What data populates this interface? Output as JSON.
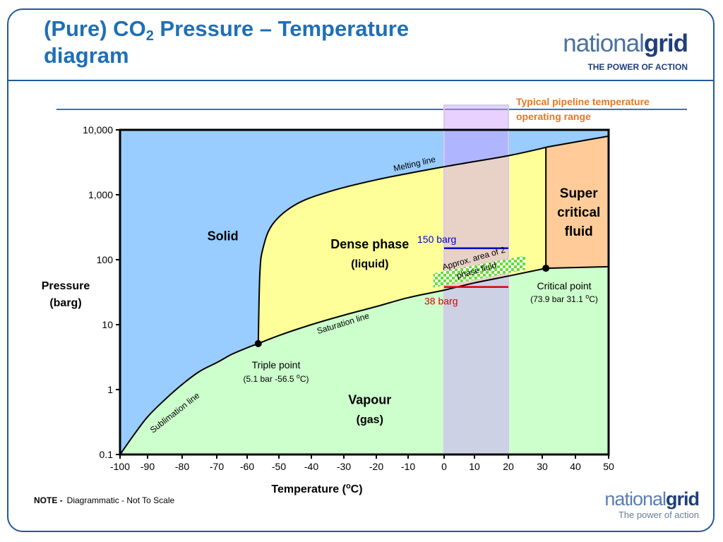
{
  "slide": {
    "title_pre": "(Pure) CO",
    "title_sub": "2",
    "title_post": " Pressure – Temperature",
    "title_line2": "diagram",
    "logo_top": {
      "word_light": "national",
      "word_bold": "grid",
      "tagline": "THE POWER OF ACTION"
    },
    "logo_bottom": {
      "word_light": "national",
      "word_bold": "grid",
      "tagline": "The power of action"
    },
    "note_label": "NOTE  -",
    "note_text": "Diagrammatic  -  Not To Scale"
  },
  "chart_data": {
    "type": "area",
    "title": "(Pure) CO2 Pressure – Temperature diagram",
    "xlabel": "Temperature  (oC)",
    "ylabel_line1": "Pressure",
    "ylabel_line2": "(barg)",
    "xlim": [
      -100,
      50
    ],
    "ylim": [
      0.1,
      10000
    ],
    "yscale": "log",
    "x_ticks": [
      -100,
      -90,
      -80,
      -70,
      -60,
      -50,
      -40,
      -30,
      -20,
      -10,
      0,
      10,
      20,
      30,
      40,
      50
    ],
    "x_tick_labels": [
      "-100",
      "-90",
      "-80",
      "-70",
      "-60",
      "-50",
      "-40",
      "-30",
      "-20",
      "-10",
      "0",
      "10",
      "20",
      "30",
      "40",
      "50"
    ],
    "y_ticks": [
      0.1,
      1,
      10,
      100,
      1000,
      10000
    ],
    "y_tick_labels": [
      "0.1",
      "1",
      "10",
      "100",
      "1,000",
      "10,000"
    ],
    "colors": {
      "solid": "#99ccff",
      "dense": "#ffff99",
      "vapour": "#ccffcc",
      "supercritical": "#ffcc99",
      "band": "#cc99ff",
      "line_150": "#0000cc",
      "line_38": "#dd0000",
      "range_text": "#e87722",
      "two_phase": "#66dd33"
    },
    "regions": [
      {
        "name": "solid",
        "line1": "Solid",
        "line2": "",
        "x": -68,
        "y": 200
      },
      {
        "name": "dense-phase",
        "line1": "Dense phase",
        "line2": "(liquid)",
        "x": -22,
        "y": 150
      },
      {
        "name": "vapour",
        "line1": "Vapour",
        "line2": "(gas)",
        "x": -22,
        "y": 0.6
      },
      {
        "name": "supercritical",
        "line1": "Super",
        "line2": "critical",
        "line3": "fluid",
        "x": 41,
        "y": 900
      }
    ],
    "curves": {
      "sublimation": {
        "label": "Sublimation line",
        "x": [
          -100,
          -95,
          -90,
          -85,
          -80,
          -75,
          -70,
          -65,
          -60,
          -56.5
        ],
        "y": [
          0.1,
          0.2,
          0.38,
          0.7,
          1.2,
          1.9,
          2.6,
          3.5,
          4.4,
          5.1
        ]
      },
      "saturation": {
        "label": "Saturation line",
        "x": [
          -56.5,
          -50,
          -40,
          -30,
          -20,
          -10,
          0,
          10,
          20,
          31.1
        ],
        "y": [
          5.1,
          6.8,
          10,
          14,
          19,
          26,
          34,
          44,
          56,
          73.9
        ]
      },
      "melting": {
        "label": "Melting line",
        "x": [
          -56.5,
          -56,
          -55,
          -52,
          -45,
          -35,
          -20,
          0,
          20,
          32
        ],
        "y": [
          5.1,
          60,
          150,
          350,
          700,
          1100,
          1700,
          2700,
          4000,
          5500
        ]
      },
      "critical_isotherm": {
        "x": [
          31.1,
          31.1
        ],
        "y": [
          73.9,
          5500
        ]
      },
      "supercritical_boundary": {
        "x": [
          31.1,
          50
        ],
        "y": [
          73.9,
          78
        ]
      }
    },
    "points": [
      {
        "name": "triple-point",
        "x": -56.5,
        "y": 5.1,
        "label": "Triple point",
        "sublabel": "(5.1 bar -56.5 oC)"
      },
      {
        "name": "critical-point",
        "x": 31.1,
        "y": 73.9,
        "label": "Critical point",
        "sublabel": "(73.9 bar 31.1 oC)"
      }
    ],
    "pipeline_range": {
      "x": [
        0,
        20
      ],
      "label_line1": "Typical pipeline temperature",
      "label_line2": "operating range"
    },
    "pressure_lines": [
      {
        "name": "line-150",
        "label": "150 barg",
        "y": 150,
        "x": [
          0,
          20
        ]
      },
      {
        "name": "line-38",
        "label": "38 barg",
        "y": 38,
        "x": [
          0,
          20
        ]
      }
    ],
    "two_phase": {
      "label_line1": "Approx. area of 2",
      "label_line2": "phase fluid",
      "x": [
        -3,
        25
      ],
      "y": [
        48,
        90
      ]
    }
  }
}
